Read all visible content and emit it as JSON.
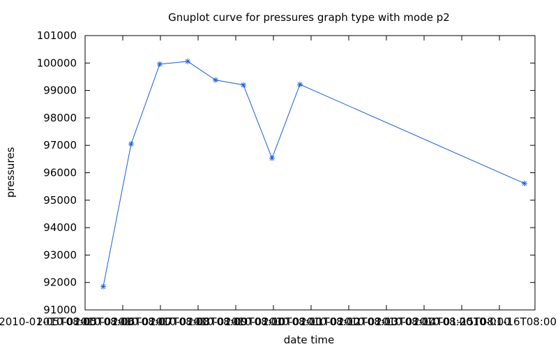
{
  "chart_data": {
    "type": "line",
    "title": "Gnuplot curve for pressures graph type with mode p2",
    "xlabel": "date time",
    "ylabel": "pressures",
    "ylim": [
      91000,
      101000
    ],
    "yticks": [
      "91000",
      "92000",
      "93000",
      "94000",
      "95000",
      "96000",
      "97000",
      "98000",
      "99000",
      "100000",
      "101000"
    ],
    "xticks": [
      "2010-01-05T08:00",
      "2010-01-05T08:00",
      "2010-01-06T08:00",
      "2010-01-07T08:00",
      "2010-01-08T08:00",
      "2010-01-09T08:00",
      "2010-01-10T08:00",
      "2010-01-11T08:00",
      "2010-01-12T08:00",
      "2010-01-13T08:00",
      "2010-01-14T08:00",
      "2010-01-15T08:00",
      "2010-01-16T08:00"
    ],
    "grid": false,
    "marker": "asterisk",
    "series": [
      {
        "color": "#1a5fd8",
        "values": [
          91850,
          97050,
          99960,
          100060,
          99380,
          99200,
          96530,
          99220,
          95610
        ]
      }
    ]
  }
}
